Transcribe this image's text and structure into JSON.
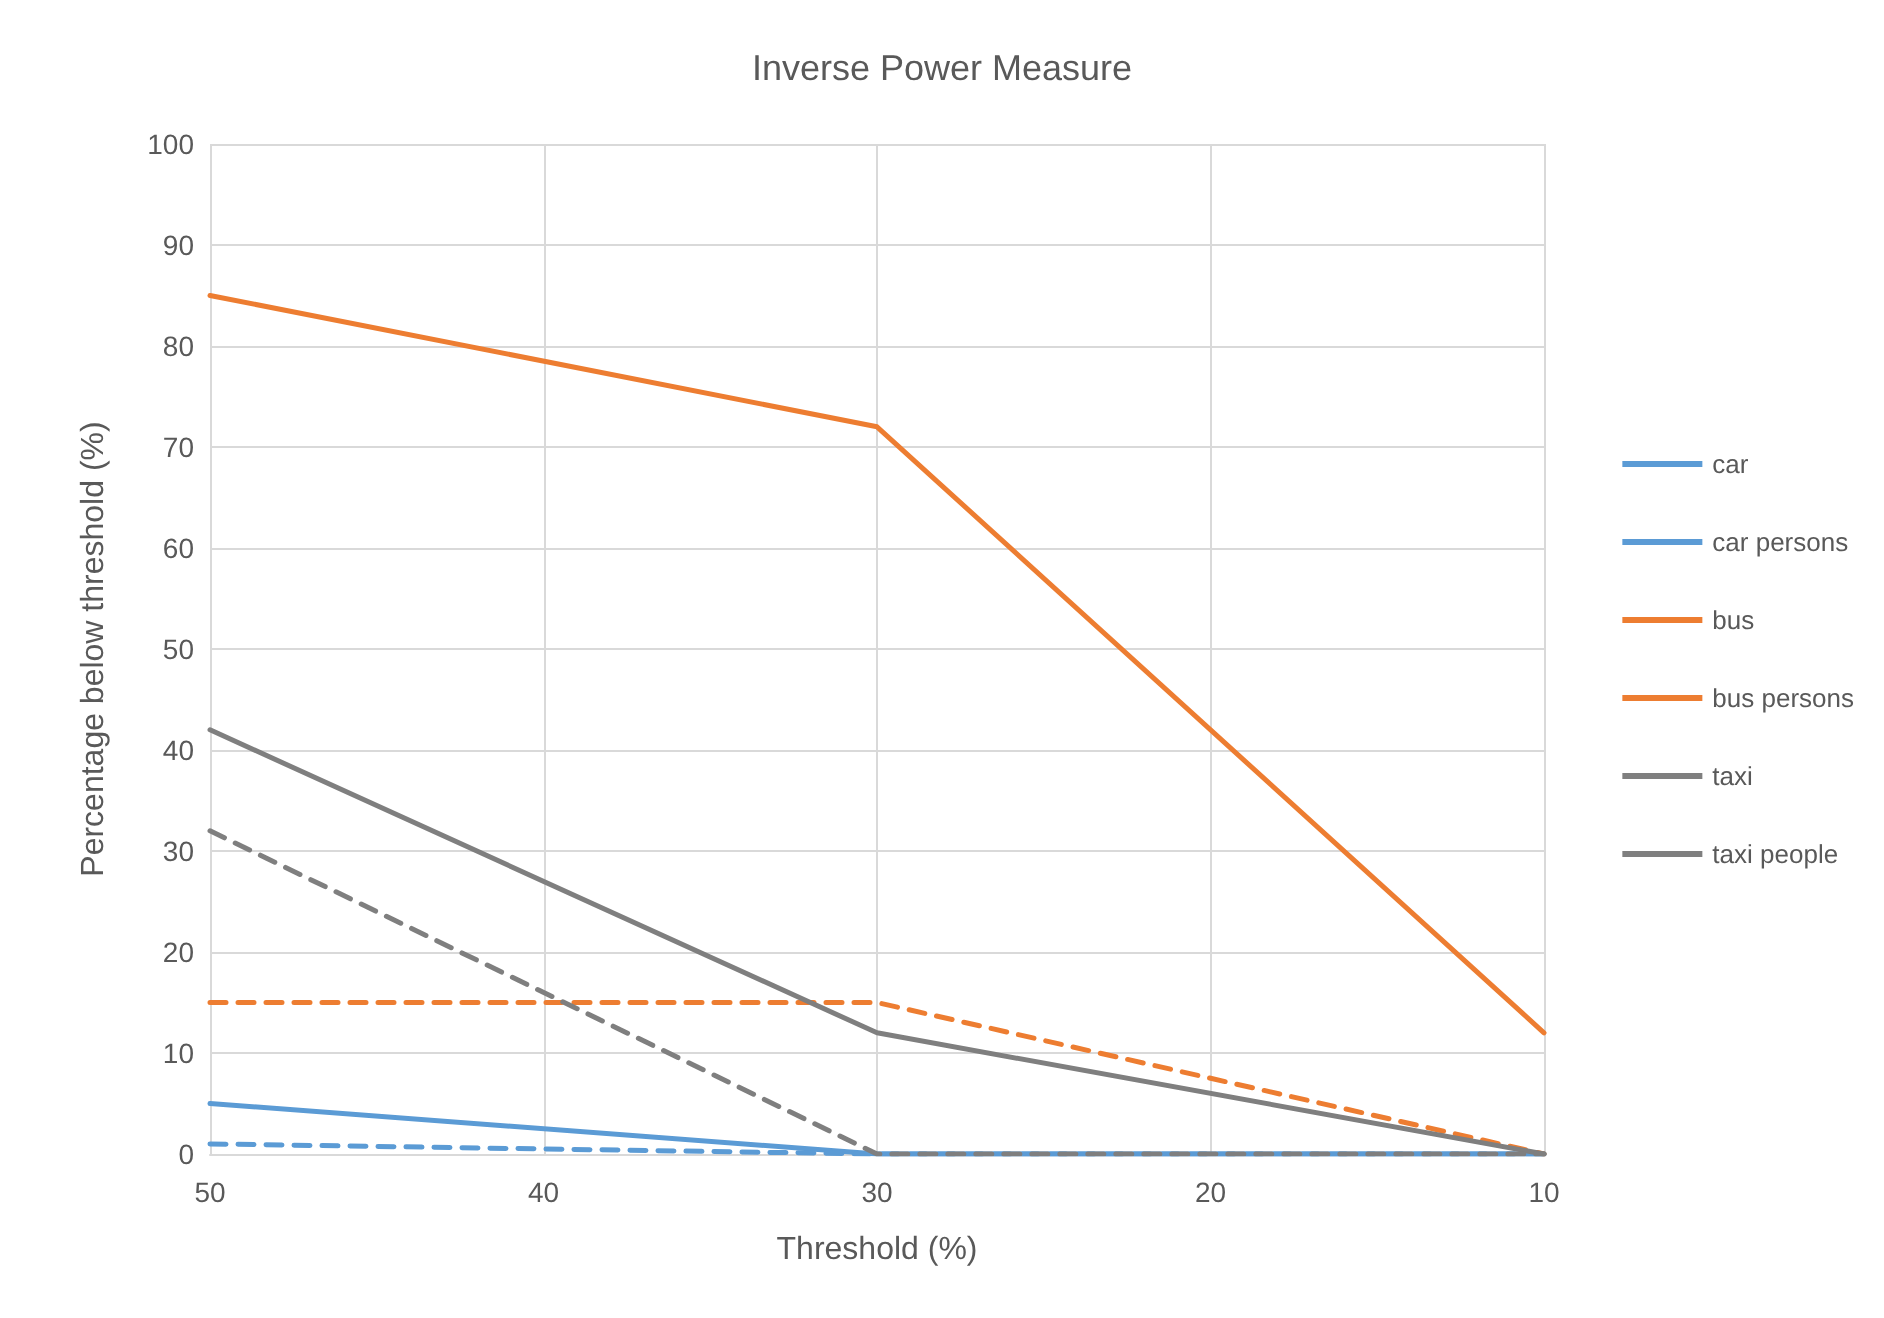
{
  "chart_data": {
    "type": "line",
    "title": "Inverse Power Measure",
    "xlabel": "Threshold (%)",
    "ylabel": "Percentage below threshold (%)",
    "xlim": [
      50,
      10
    ],
    "xticks": [
      50,
      40,
      30,
      20,
      10
    ],
    "ylim": [
      0,
      100
    ],
    "yticks": [
      0,
      10,
      20,
      30,
      40,
      50,
      60,
      70,
      80,
      90,
      100
    ],
    "grid": true,
    "legend": "right",
    "marker": "none",
    "series": [
      {
        "name": "car",
        "color": "#5b9bd5",
        "line_style": "solid",
        "x": [
          50,
          30,
          10
        ],
        "values": [
          5,
          0,
          0
        ]
      },
      {
        "name": "car persons",
        "color": "#5b9bd5",
        "line_style": "dashed",
        "x": [
          50,
          30,
          10
        ],
        "values": [
          1,
          0,
          0
        ]
      },
      {
        "name": "bus",
        "color": "#ed7d31",
        "line_style": "solid",
        "x": [
          50,
          30,
          10
        ],
        "values": [
          85,
          72,
          12
        ]
      },
      {
        "name": "bus persons",
        "color": "#ed7d31",
        "line_style": "dashed",
        "x": [
          50,
          30,
          10
        ],
        "values": [
          15,
          15,
          0
        ]
      },
      {
        "name": "taxi",
        "color": "#7f7f7f",
        "line_style": "solid",
        "x": [
          50,
          30,
          10
        ],
        "values": [
          42,
          12,
          0
        ]
      },
      {
        "name": "taxi people",
        "color": "#7f7f7f",
        "line_style": "dashed",
        "x": [
          50,
          30,
          10
        ],
        "values": [
          32,
          0,
          0
        ]
      }
    ]
  }
}
